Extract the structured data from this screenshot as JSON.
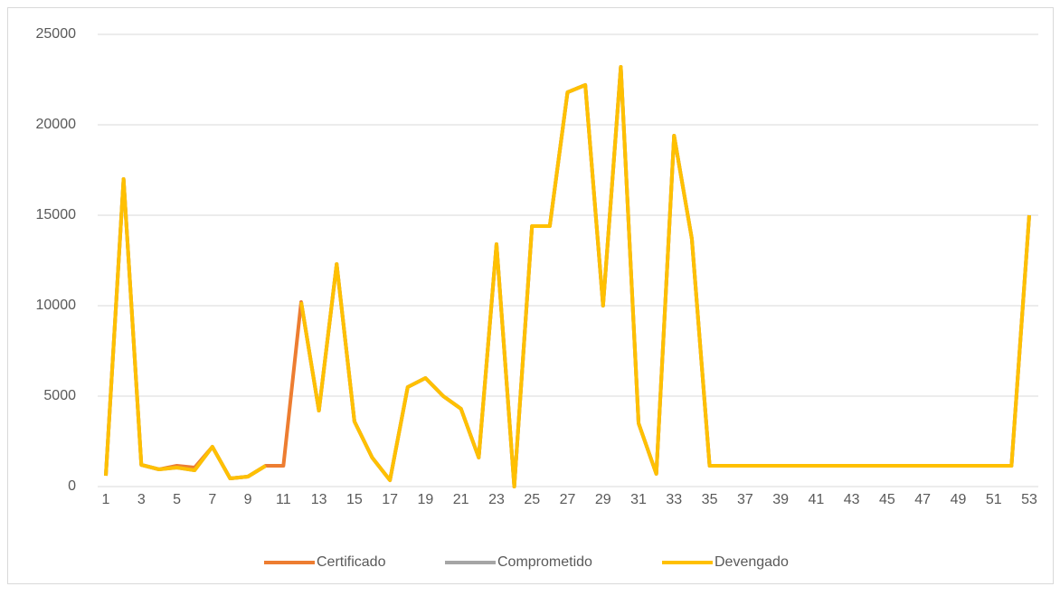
{
  "chart_data": {
    "type": "line",
    "categories": [
      1,
      null,
      3,
      null,
      5,
      null,
      7,
      null,
      9,
      null,
      11,
      null,
      13,
      null,
      15,
      null,
      17,
      null,
      19,
      null,
      21,
      null,
      23,
      null,
      25,
      null,
      27,
      null,
      29,
      null,
      31,
      null,
      33,
      null,
      35,
      null,
      37,
      null,
      39,
      null,
      41,
      null,
      43,
      null,
      45,
      null,
      47,
      null,
      49,
      null,
      51,
      null,
      53
    ],
    "series": [
      {
        "name": "Certificado",
        "color": "#ed7d31",
        "values": [
          600,
          17000,
          1200,
          950,
          1150,
          1050,
          2200,
          450,
          550,
          1150,
          1150,
          10200,
          4200,
          12300,
          3600,
          1600,
          350,
          5500,
          6000,
          5000,
          4300,
          1600,
          13400,
          0,
          14400,
          14400,
          21800,
          22200,
          10000,
          23200,
          3500,
          700,
          19400,
          13700,
          1150,
          1150,
          1150,
          1150,
          1150,
          1150,
          1150,
          1150,
          1150,
          1150,
          1150,
          1150,
          1150,
          1150,
          1150,
          1150,
          1150,
          1150,
          15000
        ]
      },
      {
        "name": "Comprometido",
        "color": "#a5a5a5",
        "values": [
          600,
          17000,
          1200,
          950,
          1050,
          900,
          2200,
          450,
          550,
          1150,
          null,
          10200,
          4200,
          12300,
          3600,
          1600,
          350,
          5500,
          6000,
          5000,
          4300,
          1600,
          13400,
          0,
          14400,
          14400,
          21800,
          22200,
          10000,
          23200,
          3500,
          700,
          19400,
          13700,
          1150,
          1150,
          1150,
          1150,
          1150,
          1150,
          1150,
          1150,
          1150,
          1150,
          1150,
          1150,
          1150,
          1150,
          1150,
          1150,
          1150,
          1150,
          15000
        ]
      },
      {
        "name": "Devengado",
        "color": "#ffc000",
        "values": [
          600,
          17000,
          1200,
          950,
          1050,
          900,
          2200,
          450,
          550,
          1150,
          null,
          10200,
          4200,
          12300,
          3600,
          1600,
          350,
          5500,
          6000,
          5000,
          4300,
          1600,
          13400,
          0,
          14400,
          14400,
          21800,
          22200,
          10000,
          23200,
          3500,
          700,
          19400,
          13700,
          1150,
          1150,
          1150,
          1150,
          1150,
          1150,
          1150,
          1150,
          1150,
          1150,
          1150,
          1150,
          1150,
          1150,
          1150,
          1150,
          1150,
          1150,
          15000
        ]
      }
    ],
    "ylim": [
      0,
      25000
    ],
    "yticks": [
      0,
      5000,
      10000,
      15000,
      20000,
      25000
    ],
    "grid": true,
    "legend": "bottom"
  }
}
